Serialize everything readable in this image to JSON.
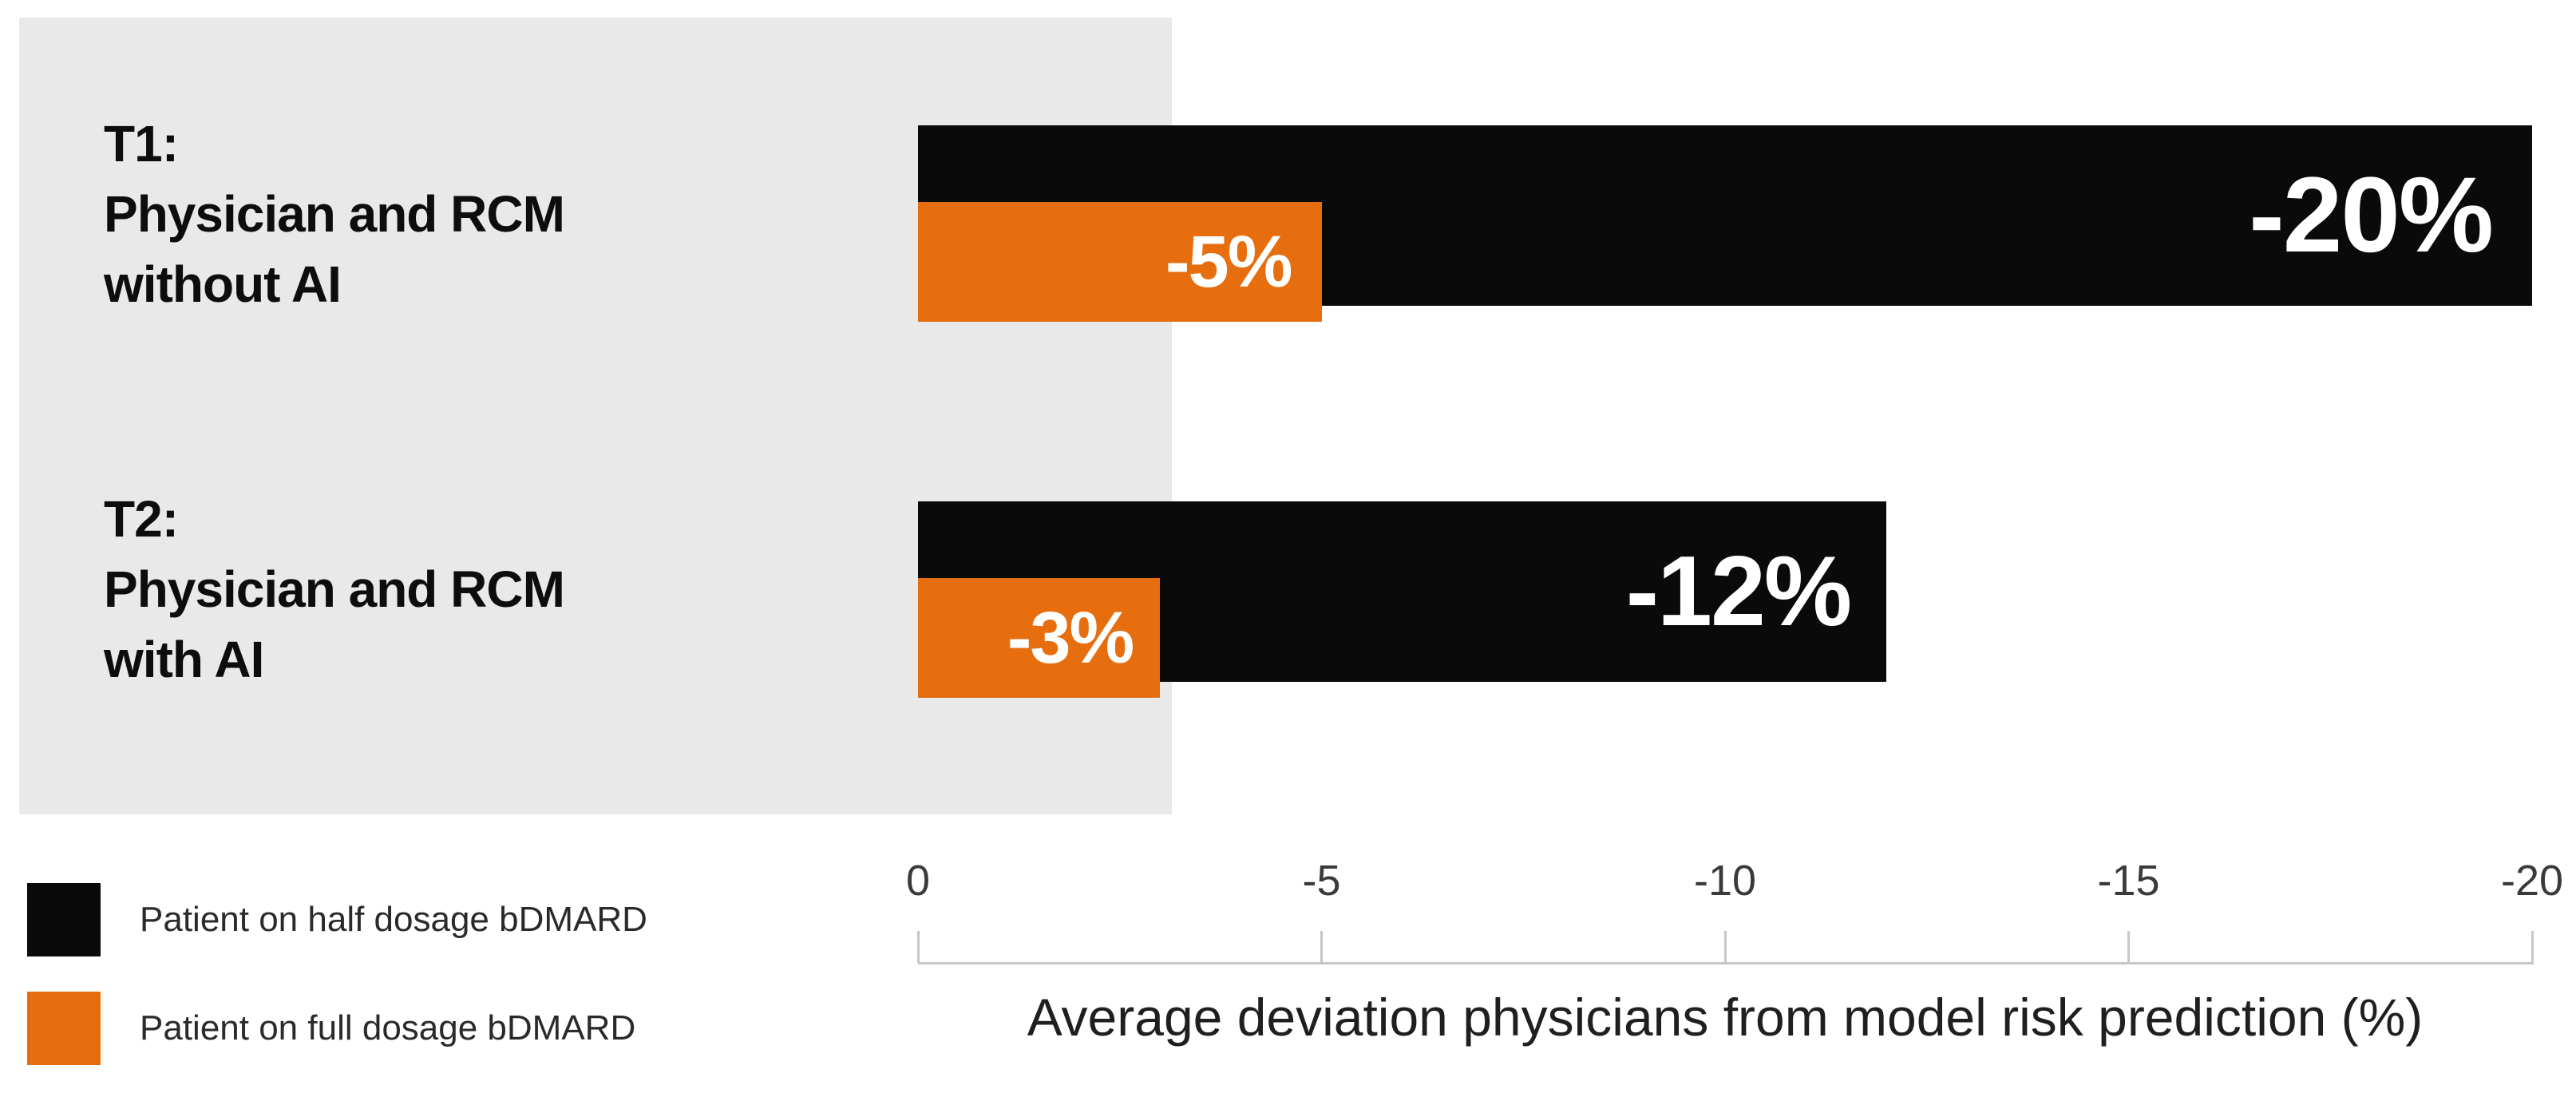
{
  "chart_data": {
    "type": "bar",
    "orientation": "horizontal",
    "xlabel": "Average deviation physicians from model risk prediction (%)",
    "x_tick_labels": [
      "0",
      "-5",
      "-10",
      "-15",
      "-20"
    ],
    "x_tick_values": [
      0,
      -5,
      -10,
      -15,
      -20
    ],
    "xlim": [
      0,
      -20
    ],
    "axis_reversed": true,
    "grid": false,
    "legend_position": "bottom-left",
    "categories": [
      {
        "label_lines": [
          "T1:",
          "Physician and RCM",
          "without AI"
        ]
      },
      {
        "label_lines": [
          "T2:",
          "Physician and RCM",
          "with AI"
        ]
      }
    ],
    "series": [
      {
        "name": "Patient on half dosage bDMARD",
        "color": "#0a0a0a",
        "values": [
          -20,
          -12
        ],
        "bar_labels": [
          "-20%",
          "-12%"
        ]
      },
      {
        "name": "Patient on full dosage bDMARD",
        "color": "#e66e0f",
        "values": [
          -5,
          -3
        ],
        "bar_labels": [
          "-5%",
          "-3%"
        ]
      }
    ]
  },
  "legend": {
    "items": [
      {
        "label": "Patient on half dosage bDMARD",
        "color": "#0a0a0a"
      },
      {
        "label": "Patient on full dosage bDMARD",
        "color": "#e66e0f"
      }
    ]
  },
  "colors": {
    "panel_background": "#e9e9e9",
    "axis_line": "#c7c7c7",
    "bar_label_text": "#ffffff"
  }
}
